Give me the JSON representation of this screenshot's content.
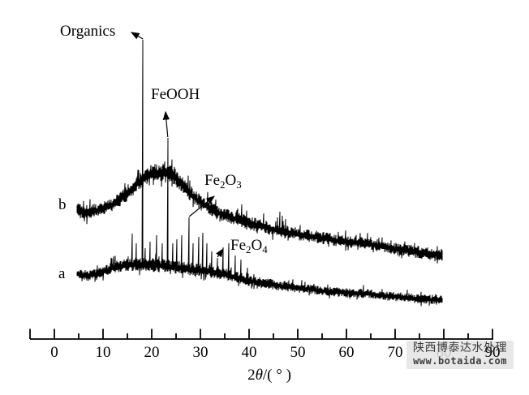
{
  "axis": {
    "ticks": [
      "0",
      "10",
      "20",
      "30",
      "40",
      "50",
      "60",
      "70",
      "80",
      "90"
    ],
    "label": {
      "num": "2",
      "theta": "θ",
      "rest": "/( ° )"
    }
  },
  "series_labels": {
    "b": "b",
    "a": "a"
  },
  "annotations": {
    "organics": {
      "label": "Organics"
    },
    "feooh": {
      "label": "FeOOH"
    },
    "fe2o3": {
      "pre": "Fe",
      "sub1": "2",
      "mid": "O",
      "sub2": "3"
    },
    "fe2o4": {
      "pre": "Fe",
      "sub1": "2",
      "mid": "O",
      "sub2": "4"
    }
  },
  "watermark": {
    "line1": "陕西博泰达水处理",
    "line2": "www.botaida.com"
  },
  "colors": {
    "trace": "#000000",
    "axis": "#000000",
    "watermark_bg": "#e5e5e5",
    "watermark_text": "#3c3c3c",
    "background": "#ffffff"
  },
  "chart_data": {
    "type": "line",
    "title": "",
    "xlabel": "2θ/(°)",
    "ylabel": "",
    "xlim": [
      -5,
      90
    ],
    "x_ticks_major": [
      0,
      10,
      20,
      30,
      40,
      50,
      60,
      70,
      80,
      90
    ],
    "x_ticks_minor": [
      5,
      15,
      25,
      35,
      45,
      55,
      65,
      75,
      85
    ],
    "grid": false,
    "legend": "none",
    "y_axis_shown": false,
    "intensity_units": "arbitrary",
    "annotations": [
      {
        "id": "organics",
        "label": "Organics",
        "two_theta": 18.2,
        "intensity": 369
      },
      {
        "id": "feooh",
        "label": "FeOOH",
        "two_theta": 23.3,
        "intensity": 248
      },
      {
        "id": "fe2o3",
        "label": "Fe2O3",
        "two_theta": 27.7,
        "intensity": 150
      },
      {
        "id": "fe2o4",
        "label": "Fe2O4",
        "two_theta": 33.5,
        "intensity": 100
      }
    ],
    "series": [
      {
        "name": "b",
        "x_range": [
          4.7,
          79.7
        ],
        "baseline": [
          [
            4.7,
            160,
            12
          ],
          [
            6.3,
            156,
            10
          ],
          [
            8.8,
            158,
            9
          ],
          [
            12.2,
            166,
            9
          ],
          [
            14.7,
            178,
            10
          ],
          [
            17.2,
            193,
            11
          ],
          [
            19.7,
            203,
            12
          ],
          [
            22.2,
            206,
            12
          ],
          [
            24.7,
            200,
            12
          ],
          [
            27.2,
            183,
            11
          ],
          [
            29.7,
            170,
            10
          ],
          [
            32.2,
            160,
            10
          ],
          [
            34.7,
            153,
            9
          ],
          [
            37.2,
            148,
            9
          ],
          [
            40.5,
            142,
            9
          ],
          [
            43.8,
            137,
            9
          ],
          [
            47.2,
            132,
            9
          ],
          [
            51.3,
            128,
            8
          ],
          [
            55.5,
            124,
            8
          ],
          [
            59.7,
            120,
            8
          ],
          [
            63.8,
            118,
            8
          ],
          [
            68.0,
            113,
            8
          ],
          [
            72.2,
            109,
            8
          ],
          [
            75.5,
            106,
            8
          ],
          [
            79.7,
            103,
            8
          ]
        ],
        "spikes": [
          [
            38.5,
            166
          ],
          [
            45.8,
            150
          ],
          [
            46.3,
            157
          ],
          [
            46.9,
            152
          ]
        ]
      },
      {
        "name": "a",
        "x_range": [
          4.7,
          79.7
        ],
        "baseline": [
          [
            4.7,
            80,
            7
          ],
          [
            7.2,
            78,
            7
          ],
          [
            9.7,
            82,
            7
          ],
          [
            12.2,
            88,
            8
          ],
          [
            14.7,
            91,
            8
          ],
          [
            17.2,
            92,
            9
          ],
          [
            19.7,
            91,
            9
          ],
          [
            22.2,
            90,
            9
          ],
          [
            24.7,
            88,
            9
          ],
          [
            27.2,
            86,
            9
          ],
          [
            29.7,
            84,
            9
          ],
          [
            32.2,
            83,
            9
          ],
          [
            34.7,
            80,
            8
          ],
          [
            37.2,
            76,
            8
          ],
          [
            40.5,
            71,
            7
          ],
          [
            43.8,
            68,
            7
          ],
          [
            47.2,
            65,
            7
          ],
          [
            51.3,
            62,
            6
          ],
          [
            55.5,
            59,
            6
          ],
          [
            59.7,
            57,
            6
          ],
          [
            63.8,
            56,
            6
          ],
          [
            68.0,
            53,
            6
          ],
          [
            72.2,
            51,
            6
          ],
          [
            75.5,
            49,
            6
          ],
          [
            79.7,
            48,
            6
          ]
        ],
        "spikes": [
          [
            16.0,
            130
          ],
          [
            16.8,
            118
          ],
          [
            18.2,
            369
          ],
          [
            18.6,
            112
          ],
          [
            19.7,
            120
          ],
          [
            21.0,
            128
          ],
          [
            22.2,
            118
          ],
          [
            23.3,
            248
          ],
          [
            24.3,
            118
          ],
          [
            25.2,
            123
          ],
          [
            26.2,
            128
          ],
          [
            27.7,
            150
          ],
          [
            28.5,
            118
          ],
          [
            29.7,
            126
          ],
          [
            30.5,
            131
          ],
          [
            31.3,
            118
          ],
          [
            32.3,
            108
          ],
          [
            33.5,
            100
          ],
          [
            34.7,
            113
          ],
          [
            35.8,
            118
          ],
          [
            37.2,
            103
          ],
          [
            38.3,
            98
          ],
          [
            39.7,
            88
          ]
        ]
      }
    ]
  }
}
